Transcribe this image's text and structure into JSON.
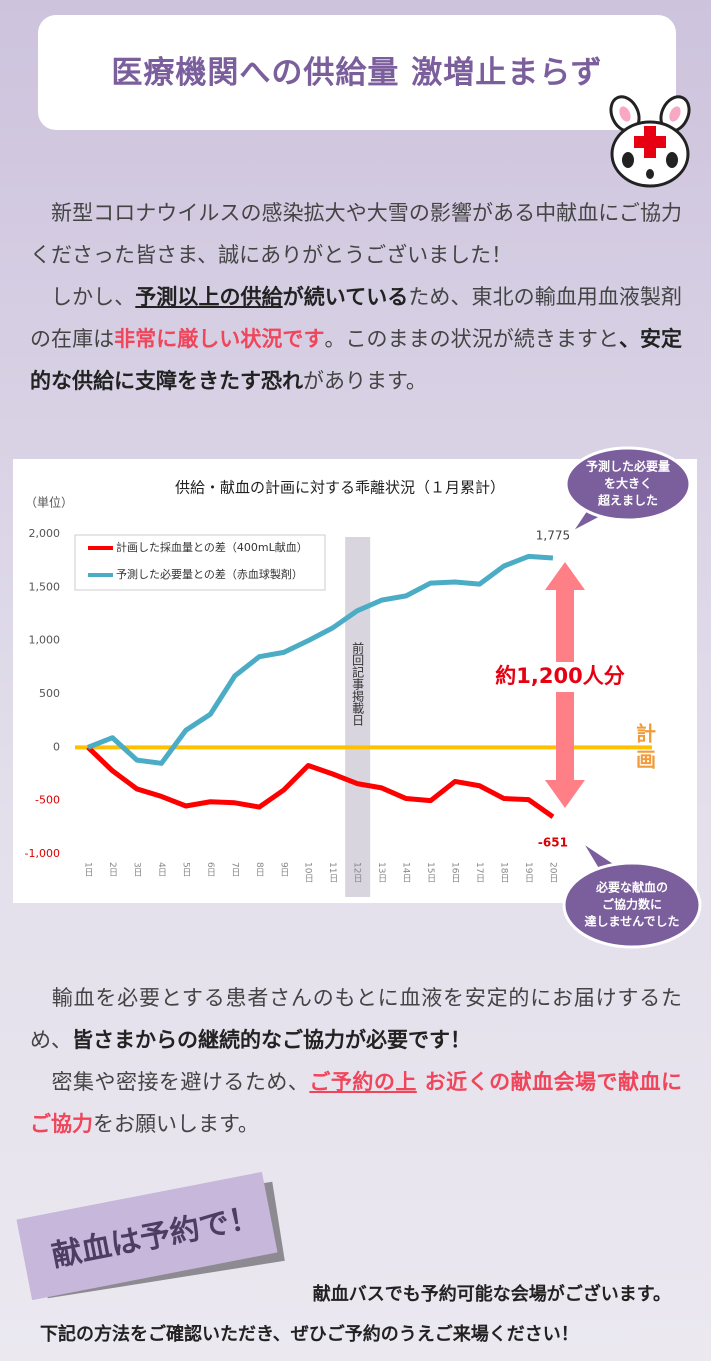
{
  "header": {
    "title": "医療機関への供給量 激増止まらず"
  },
  "intro": {
    "paragraphs": [
      [
        {
          "text": "　新型コロナウイルスの感染拡大や大雪の影響がある中献血にご協力くださった皆さま、誠にありがとうございました！",
          "style": "plain"
        }
      ],
      [
        {
          "text": "　しかし、",
          "style": "plain"
        },
        {
          "text": "予測以上の供給",
          "style": "bold-underline"
        },
        {
          "text": "が続いている",
          "style": "bold"
        },
        {
          "text": "ため、東北の輸血用血液製剤の在庫は",
          "style": "plain"
        },
        {
          "text": "非常に厳しい状況です",
          "style": "red"
        },
        {
          "text": "。このままの状況が続きますと",
          "style": "plain"
        },
        {
          "text": "、安定的な供給に支障をきたす恐れ",
          "style": "bold"
        },
        {
          "text": "があります。",
          "style": "plain"
        }
      ]
    ]
  },
  "chart_data": {
    "type": "line",
    "title": "供給・献血の計画に対する乖離状況（１月累計）",
    "unit_label": "（単位）",
    "categories": [
      "1日",
      "2日",
      "3日",
      "4日",
      "5日",
      "6日",
      "7日",
      "8日",
      "9日",
      "10日",
      "11日",
      "12日",
      "13日",
      "14日",
      "15日",
      "16日",
      "17日",
      "18日",
      "19日",
      "20日"
    ],
    "series": [
      {
        "name": "計画した採血量との差（400mL献血）",
        "color": "#ff0000",
        "values": [
          0,
          -220,
          -390,
          -460,
          -550,
          -510,
          -520,
          -560,
          -400,
          -170,
          -250,
          -340,
          -380,
          -480,
          -500,
          -320,
          -360,
          -480,
          -490,
          -651
        ],
        "value_labels": [
          null,
          null,
          null,
          null,
          null,
          null,
          null,
          null,
          null,
          null,
          null,
          null,
          null,
          null,
          null,
          null,
          null,
          null,
          null,
          "-651"
        ]
      },
      {
        "name": "予測した必要量との差（赤血球製剤）",
        "color": "#4bacc6",
        "values": [
          0,
          90,
          -120,
          -150,
          160,
          310,
          670,
          850,
          890,
          1000,
          1120,
          1280,
          1380,
          1420,
          1540,
          1550,
          1530,
          1700,
          1790,
          1775
        ],
        "value_labels": [
          null,
          null,
          null,
          null,
          null,
          null,
          null,
          null,
          null,
          null,
          null,
          null,
          null,
          null,
          null,
          null,
          null,
          null,
          null,
          "1,775"
        ]
      }
    ],
    "ylim": [
      -1000,
      2000
    ],
    "yticks": [
      {
        "value": -1000,
        "label": "-1,000"
      },
      -500,
      0,
      500,
      {
        "value": 1000,
        "label": "1,000"
      },
      {
        "value": 1500,
        "label": "1,500"
      },
      {
        "value": 2000,
        "label": "2,000"
      }
    ],
    "legend": "upper left",
    "plan_line": {
      "value": 0,
      "label": "計画",
      "color": "#ffc000"
    },
    "band": {
      "category": 11,
      "label": "前回記事掲載日"
    },
    "gap_annotation": "約1,200人分",
    "callouts": [
      [
        "予測した必要量",
        "を大きく",
        "超えました"
      ],
      [
        "必要な献血の",
        "ご協力数に",
        "達しませんでした"
      ]
    ]
  },
  "closing": {
    "paragraphs": [
      [
        {
          "text": "　輸血を必要とする患者さんのもとに血液を安定的にお届けするため、",
          "style": "plain"
        },
        {
          "text": "皆さまからの継続的なご協力が必要です！",
          "style": "bold"
        }
      ],
      [
        {
          "text": "　密集や密接を避けるため、",
          "style": "plain"
        },
        {
          "text": "ご予約の上",
          "style": "red-underline"
        },
        {
          "text": " お近くの献血会場で献血にご協力",
          "style": "red"
        },
        {
          "text": "をお願いします。",
          "style": "plain"
        }
      ]
    ]
  },
  "banner": {
    "label": "献血は予約で！",
    "lines": [
      "献血バスでも予約可能な会場がございます。",
      "下記の方法をご確認いただき、ぜひご予約のうえご来場ください！"
    ]
  }
}
